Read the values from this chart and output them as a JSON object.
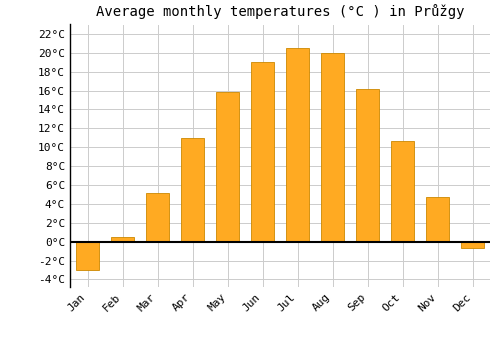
{
  "title": "Average monthly temperatures (°C ) in Průžgy",
  "months": [
    "Jan",
    "Feb",
    "Mar",
    "Apr",
    "May",
    "Jun",
    "Jul",
    "Aug",
    "Sep",
    "Oct",
    "Nov",
    "Dec"
  ],
  "values": [
    -3.0,
    0.5,
    5.2,
    11.0,
    15.9,
    19.0,
    20.5,
    20.0,
    16.2,
    10.7,
    4.7,
    -0.7
  ],
  "bar_color": "#FFAA22",
  "bar_edge_color": "#CC8800",
  "ylim": [
    -4.8,
    23.0
  ],
  "yticks": [
    -4,
    -2,
    0,
    2,
    4,
    6,
    8,
    10,
    12,
    14,
    16,
    18,
    20,
    22
  ],
  "background_color": "#ffffff",
  "grid_color": "#cccccc",
  "title_fontsize": 10,
  "tick_fontsize": 8,
  "bar_width": 0.65
}
